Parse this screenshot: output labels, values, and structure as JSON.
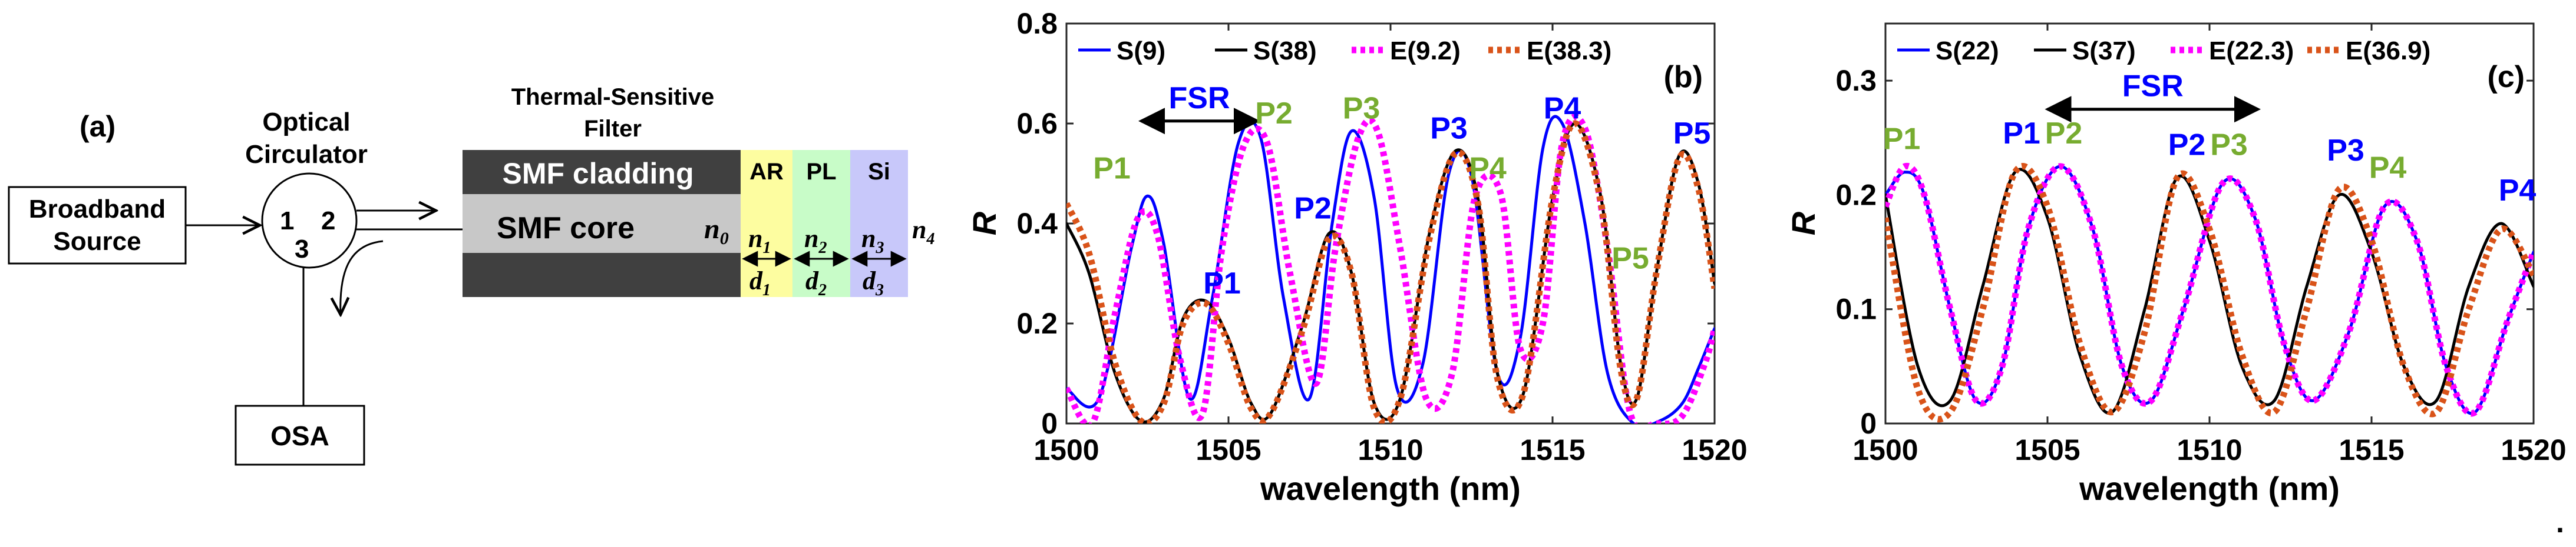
{
  "figure_a": {
    "label": "(a)",
    "broadband_source": [
      "Broadband",
      "Source"
    ],
    "circulator_title": [
      "Optical",
      "Circulator"
    ],
    "port_labels": [
      "1",
      "2",
      "3"
    ],
    "osa_label": "OSA",
    "filter_title": [
      "Thermal-Sensitive",
      "Filter"
    ],
    "cladding_label": "SMF cladding",
    "core_label": "SMF core",
    "layer_labels": [
      "AR",
      "PL",
      "Si"
    ],
    "n0": "0",
    "n_indices": [
      "1",
      "2",
      "3",
      "4"
    ],
    "d_indices": [
      "1",
      "2",
      "3"
    ],
    "n_letter": "n",
    "d_letter": "d",
    "colors": {
      "cladding": "#404040",
      "core": "#c8c8c8",
      "AR": "#fdfda0",
      "PL": "#c8fcc8",
      "Si": "#c8c8fa"
    }
  },
  "chart_data": [
    {
      "id": "b",
      "type": "line",
      "panel_label": "(b)",
      "xlabel": "wavelength (nm)",
      "ylabel": "R",
      "xlim": [
        1500,
        1520
      ],
      "ylim": [
        0,
        0.8
      ],
      "xticks": [
        "1500",
        "1505",
        "1510",
        "1515",
        "1520"
      ],
      "yticks": [
        "0",
        "0.2",
        "0.4",
        "0.6",
        "0.8"
      ],
      "legend": [
        "S(9)",
        "S(38)",
        "E(9.2)",
        "E(38.3)"
      ],
      "series": [
        {
          "name": "S(9)",
          "color": "#0000ff",
          "style": "solid",
          "x": [
            1500,
            1501,
            1502,
            1502.5,
            1503,
            1503.8,
            1504.5,
            1505.3,
            1506,
            1506.7,
            1507.5,
            1508.2,
            1508.8,
            1509.5,
            1510.2,
            1511,
            1511.8,
            1512.5,
            1513.3,
            1514,
            1514.7,
            1515.3,
            1516,
            1516.7,
            1517.5,
            1518.3,
            1519,
            1519.5,
            1520
          ],
          "y": [
            0.07,
            0.05,
            0.35,
            0.455,
            0.36,
            0.05,
            0.25,
            0.56,
            0.57,
            0.25,
            0.05,
            0.4,
            0.585,
            0.45,
            0.07,
            0.12,
            0.5,
            0.495,
            0.1,
            0.17,
            0.55,
            0.6,
            0.4,
            0.1,
            0.0,
            0.005,
            0.04,
            0.11,
            0.19
          ]
        },
        {
          "name": "S(38)",
          "color": "#000000",
          "style": "solid",
          "x": [
            1500,
            1500.7,
            1501.5,
            1502.3,
            1503,
            1503.6,
            1504.3,
            1505,
            1505.7,
            1506.3,
            1507.3,
            1508.1,
            1508.8,
            1509.5,
            1510.3,
            1511.2,
            1512,
            1512.7,
            1513.3,
            1514.1,
            1515,
            1515.7,
            1516.5,
            1517.1,
            1517.6,
            1518.2,
            1518.9,
            1519.5,
            1520
          ],
          "y": [
            0.4,
            0.3,
            0.1,
            0.005,
            0.05,
            0.21,
            0.245,
            0.17,
            0.04,
            0.02,
            0.2,
            0.38,
            0.3,
            0.04,
            0.05,
            0.38,
            0.545,
            0.45,
            0.1,
            0.06,
            0.45,
            0.6,
            0.45,
            0.12,
            0.05,
            0.3,
            0.535,
            0.48,
            0.28
          ]
        },
        {
          "name": "E(9.2)",
          "color": "#ff00ff",
          "style": "dotted",
          "x": [
            1500,
            1500.8,
            1501.5,
            1502.2,
            1502.8,
            1503.5,
            1504.2,
            1504.8,
            1505.5,
            1506.2,
            1506.9,
            1507.7,
            1508.3,
            1509,
            1509.6,
            1510.3,
            1511.1,
            1511.9,
            1512.6,
            1513.4,
            1514,
            1514.7,
            1515.3,
            1516,
            1516.7,
            1517.4,
            1518.2,
            1519,
            1519.7,
            1520
          ],
          "y": [
            0.07,
            0.0,
            0.22,
            0.41,
            0.38,
            0.13,
            0.02,
            0.35,
            0.56,
            0.56,
            0.3,
            0.08,
            0.35,
            0.57,
            0.585,
            0.35,
            0.05,
            0.1,
            0.45,
            0.46,
            0.15,
            0.2,
            0.56,
            0.59,
            0.35,
            0.02,
            0.0,
            0.015,
            0.12,
            0.19
          ]
        },
        {
          "name": "E(38.3)",
          "color": "#d95319",
          "style": "dotted",
          "x": [
            1500,
            1500.7,
            1501.5,
            1502.3,
            1503,
            1503.6,
            1504.3,
            1505,
            1505.7,
            1506.3,
            1507.3,
            1508.1,
            1508.8,
            1509.5,
            1510.3,
            1511.2,
            1512,
            1512.7,
            1513.3,
            1514.1,
            1515,
            1515.7,
            1516.5,
            1517.1,
            1517.6,
            1518.2,
            1518.9,
            1519.5,
            1520
          ],
          "y": [
            0.44,
            0.34,
            0.12,
            0.005,
            0.04,
            0.2,
            0.24,
            0.16,
            0.03,
            0.02,
            0.19,
            0.37,
            0.3,
            0.03,
            0.05,
            0.37,
            0.54,
            0.44,
            0.09,
            0.06,
            0.45,
            0.6,
            0.44,
            0.11,
            0.05,
            0.3,
            0.53,
            0.47,
            0.27
          ]
        }
      ],
      "peak_labels": [
        {
          "text": "P1",
          "color": "green",
          "x": 1501.4,
          "y": 0.49
        },
        {
          "text": "P1",
          "color": "blue",
          "x": 1504.8,
          "y": 0.26
        },
        {
          "text": "P2",
          "color": "green",
          "x": 1506.4,
          "y": 0.6
        },
        {
          "text": "P2",
          "color": "blue",
          "x": 1507.6,
          "y": 0.41
        },
        {
          "text": "P3",
          "color": "green",
          "x": 1509.1,
          "y": 0.61
        },
        {
          "text": "P3",
          "color": "blue",
          "x": 1511.8,
          "y": 0.57
        },
        {
          "text": "P4",
          "color": "green",
          "x": 1513,
          "y": 0.49
        },
        {
          "text": "P4",
          "color": "blue",
          "x": 1515.3,
          "y": 0.61
        },
        {
          "text": "P5",
          "color": "green",
          "x": 1517.4,
          "y": 0.31
        },
        {
          "text": "P5",
          "color": "blue",
          "x": 1519.3,
          "y": 0.56
        }
      ],
      "fsr": {
        "text": "FSR",
        "x_start": 1502.3,
        "x_end": 1505.9,
        "y": 0.605
      }
    },
    {
      "id": "c",
      "type": "line",
      "panel_label": "(c)",
      "xlabel": "wavelength (nm)",
      "ylabel": "R",
      "xlim": [
        1500,
        1520
      ],
      "ylim": [
        0,
        0.35
      ],
      "xticks": [
        "1500",
        "1505",
        "1510",
        "1515",
        "1520"
      ],
      "yticks": [
        "0",
        "0.1",
        "0.2",
        "0.3"
      ],
      "legend": [
        "S(22)",
        "S(37)",
        "E(22.3)",
        "E(36.9)"
      ],
      "series": [
        {
          "name": "S(22)",
          "color": "#0000ff",
          "style": "solid",
          "x": [
            1500,
            1500.6,
            1501.2,
            1502,
            1502.8,
            1503.6,
            1504.4,
            1505.4,
            1506.4,
            1507.3,
            1508.2,
            1509.2,
            1510.4,
            1511.4,
            1512.3,
            1513.2,
            1514.3,
            1515.4,
            1516.4,
            1517.3,
            1518.2,
            1519.2,
            1520
          ],
          "y": [
            0.2,
            0.22,
            0.2,
            0.1,
            0.02,
            0.05,
            0.17,
            0.225,
            0.17,
            0.05,
            0.02,
            0.1,
            0.21,
            0.18,
            0.07,
            0.02,
            0.08,
            0.19,
            0.16,
            0.05,
            0.01,
            0.09,
            0.15
          ]
        },
        {
          "name": "S(37)",
          "color": "#000000",
          "style": "solid",
          "x": [
            1500,
            1501,
            1502,
            1503,
            1504,
            1505,
            1506,
            1507,
            1508,
            1509,
            1510,
            1511,
            1512,
            1513,
            1514,
            1515,
            1516,
            1517,
            1518,
            1519,
            1520
          ],
          "y": [
            0.2,
            0.05,
            0.02,
            0.12,
            0.22,
            0.18,
            0.06,
            0.01,
            0.1,
            0.215,
            0.16,
            0.05,
            0.02,
            0.12,
            0.2,
            0.15,
            0.05,
            0.02,
            0.12,
            0.175,
            0.12
          ]
        },
        {
          "name": "E(22.3)",
          "color": "#ff00ff",
          "style": "dotted",
          "x": [
            1500,
            1500.6,
            1501.2,
            1502,
            1502.8,
            1503.6,
            1504.4,
            1505.4,
            1506.4,
            1507.3,
            1508.2,
            1509.2,
            1510.4,
            1511.4,
            1512.3,
            1513.2,
            1514.3,
            1515.4,
            1516.4,
            1517.3,
            1518.2,
            1519.2,
            1520
          ],
          "y": [
            0.19,
            0.225,
            0.2,
            0.1,
            0.02,
            0.05,
            0.17,
            0.225,
            0.17,
            0.05,
            0.02,
            0.1,
            0.21,
            0.18,
            0.07,
            0.02,
            0.08,
            0.19,
            0.16,
            0.05,
            0.01,
            0.09,
            0.15
          ]
        },
        {
          "name": "E(36.9)",
          "color": "#d95319",
          "style": "dotted",
          "x": [
            1500,
            1501,
            1502,
            1503,
            1504,
            1505,
            1506,
            1507,
            1508,
            1509,
            1510,
            1511,
            1512,
            1513,
            1514,
            1515,
            1516,
            1517,
            1518,
            1519,
            1520
          ],
          "y": [
            0.18,
            0.03,
            0.01,
            0.1,
            0.22,
            0.19,
            0.07,
            0.01,
            0.08,
            0.215,
            0.17,
            0.06,
            0.01,
            0.1,
            0.205,
            0.16,
            0.05,
            0.01,
            0.1,
            0.17,
            0.13
          ]
        }
      ],
      "peak_labels": [
        {
          "text": "P1",
          "color": "green",
          "x": 1500.5,
          "y": 0.24
        },
        {
          "text": "P1",
          "color": "blue",
          "x": 1504.2,
          "y": 0.245
        },
        {
          "text": "P2",
          "color": "green",
          "x": 1505.5,
          "y": 0.245
        },
        {
          "text": "P2",
          "color": "blue",
          "x": 1509.3,
          "y": 0.235
        },
        {
          "text": "P3",
          "color": "green",
          "x": 1510.6,
          "y": 0.235
        },
        {
          "text": "P3",
          "color": "blue",
          "x": 1514.2,
          "y": 0.23
        },
        {
          "text": "P4",
          "color": "green",
          "x": 1515.5,
          "y": 0.215
        },
        {
          "text": "P4",
          "color": "blue",
          "x": 1519.5,
          "y": 0.195
        }
      ],
      "fsr": {
        "text": "FSR",
        "x_start": 1505,
        "x_end": 1511.5,
        "y": 0.275
      }
    }
  ]
}
